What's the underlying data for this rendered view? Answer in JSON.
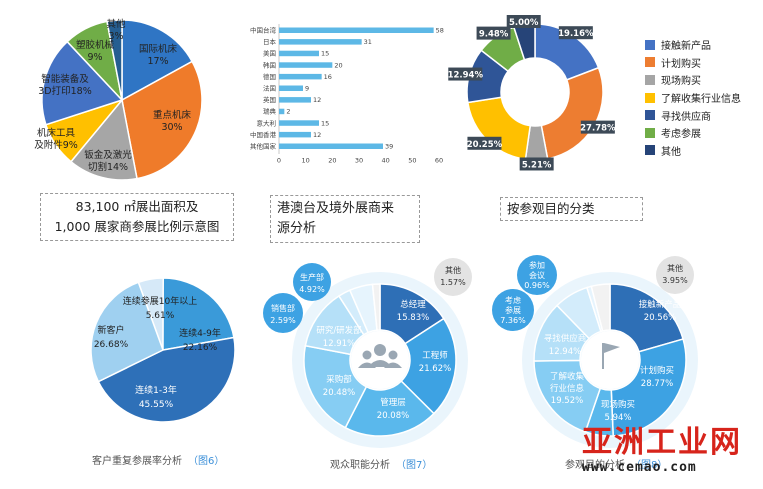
{
  "chart_data": [
    {
      "type": "pie",
      "labels": [
        "国际机床",
        "重点机床",
        "钣金及激光切割",
        "机床工具及附件",
        "智能装备及3D打印",
        "塑胶机械",
        "其他"
      ],
      "values": [
        17,
        30,
        14,
        9,
        18,
        9,
        3
      ],
      "colors": [
        "#2f75c4",
        "#ef7b2a",
        "#a6a6a6",
        "#ffc000",
        "#4472c4",
        "#70ad47",
        "#255e91"
      ]
    },
    {
      "type": "bar",
      "orientation": "horizontal",
      "categories": [
        "中国台湾",
        "日本",
        "美国",
        "韩国",
        "德国",
        "法国",
        "英国",
        "瑞典",
        "意大利",
        "中国香港",
        "其他国家"
      ],
      "values": [
        58,
        31,
        15,
        20,
        16,
        9,
        12,
        2,
        15,
        12,
        39
      ],
      "xlim": [
        0,
        60
      ],
      "xticks": [
        "0",
        "10",
        "20",
        "30",
        "40",
        "50",
        "60"
      ],
      "color": "#5db8e6"
    },
    {
      "type": "pie",
      "donut": true,
      "labels": [
        "接触新产品",
        "计划购买",
        "现场购买",
        "了解收集行业信息",
        "寻找供应商",
        "考虑参展",
        "其他"
      ],
      "values": [
        19.16,
        27.78,
        5.21,
        20.25,
        12.94,
        9.48,
        5.0
      ],
      "value_labels": [
        "19.16%",
        "27.78%",
        "5.21%",
        "20.25%",
        "12.94%",
        "9.48%",
        "5.00%"
      ],
      "colors": [
        "#4472c4",
        "#ed7d31",
        "#a5a5a5",
        "#ffc000",
        "#2f5597",
        "#70ad47",
        "#264478"
      ]
    },
    {
      "type": "pie",
      "labels": [
        "连续参展10年以上",
        "连续4-9年",
        "连续1-3年",
        "新客户"
      ],
      "values": [
        5.61,
        22.16,
        45.55,
        26.68
      ],
      "value_labels": [
        "5.61%",
        "22.16%",
        "45.55%",
        "26.68%"
      ],
      "colors": [
        "#d6e9f8",
        "#3a9ad9",
        "#2e70b8",
        "#9fd0f0"
      ]
    },
    {
      "type": "pie",
      "donut": true,
      "labels": [
        "总经理",
        "工程师",
        "管理层",
        "采购部",
        "研究/研发部",
        "销售部",
        "生产部",
        "其他"
      ],
      "values": [
        15.83,
        21.62,
        20.08,
        20.48,
        12.91,
        2.59,
        4.92,
        1.57
      ],
      "value_labels": [
        "15.83%",
        "21.62%",
        "20.08%",
        "20.48%",
        "12.91%",
        "2.59%",
        "4.92%",
        "1.57%"
      ],
      "colors": [
        "#2e6fb6",
        "#3da2e3",
        "#5ab8ec",
        "#86cdf3",
        "#b5e0f8",
        "#d3ecfb",
        "#e6f4fd",
        "#f2f2f2"
      ]
    },
    {
      "type": "pie",
      "donut": true,
      "labels": [
        "接触新产品",
        "计划购买",
        "现场购买",
        "了解收集行业信息",
        "寻找供应商",
        "考虑参展",
        "参加会议",
        "其他"
      ],
      "values": [
        20.56,
        28.77,
        5.94,
        19.52,
        12.94,
        7.36,
        0.96,
        3.95
      ],
      "value_labels": [
        "20.56%",
        "28.77%",
        "5.94%",
        "19.52%",
        "12.94%",
        "7.36%",
        "0.96%",
        "3.95%"
      ],
      "colors": [
        "#2e6fb6",
        "#3da2e3",
        "#5ab8ec",
        "#86cdf3",
        "#b5e0f8",
        "#d3ecfb",
        "#e6f4fd",
        "#f2f2f2"
      ]
    }
  ],
  "text": {
    "pie1_labels": {
      "intl": [
        "国际机床",
        "17%"
      ],
      "key": [
        "重点机床",
        "30%"
      ],
      "sheet": [
        "钣金及激光",
        "切割14%"
      ],
      "tools": [
        "机床工具",
        "及附件9%"
      ],
      "smart": [
        "智能装备及",
        "3D打印18%"
      ],
      "plastic": [
        "塑胶机械",
        "9%"
      ],
      "other": [
        "其他",
        "3%"
      ]
    },
    "caption1": [
      "83,100 ㎡展出面积及",
      "1,000 展家商参展比例示意图"
    ],
    "caption2": [
      "港澳台及境外展商来",
      "源分析"
    ],
    "caption3": "按参观目的分类",
    "pie4_labels": {
      "a": [
        "连续参展10年以上",
        "5.61%"
      ],
      "b": [
        "连续4-9年",
        "22.16%"
      ],
      "c": [
        "连续1-3年",
        "45.55%"
      ],
      "d": [
        "新客户",
        "26.68%"
      ]
    },
    "donut2_labels": {
      "gm": [
        "总经理",
        "15.83%"
      ],
      "eng": [
        "工程师",
        "21.62%"
      ],
      "mgmt": [
        "管理层",
        "20.08%"
      ],
      "purchase": [
        "采购部",
        "20.48%"
      ],
      "rd": [
        "研究/研发部",
        "12.91%"
      ],
      "sales": [
        "销售部",
        "2.59%"
      ],
      "prod": [
        "生产部",
        "4.92%"
      ],
      "other": [
        "其他",
        "1.57%"
      ]
    },
    "donut3_labels": {
      "contact": [
        "接触新产品",
        "20.56%"
      ],
      "plan": [
        "计划购买",
        "28.77%"
      ],
      "onsite": [
        "现场购买",
        "5.94%"
      ],
      "info": [
        "了解收集",
        "行业信息",
        "19.52%"
      ],
      "supplier": [
        "寻找供应商",
        "12.94%"
      ],
      "exhibit": [
        "考虑",
        "参展",
        "7.36%"
      ],
      "meeting": [
        "参加",
        "会议",
        "0.96%"
      ],
      "other": [
        "其他",
        "3.95%"
      ]
    },
    "bottom_captions": {
      "c6": "客户重复参展率分析",
      "c6n": "（图6）",
      "c7": "观众职能分析",
      "c7n": "（图7）",
      "c8": "参观目的分析",
      "c8n": "（图8）"
    },
    "logo_cn": "亚洲工业网",
    "logo_url": "www.cemao.com"
  }
}
